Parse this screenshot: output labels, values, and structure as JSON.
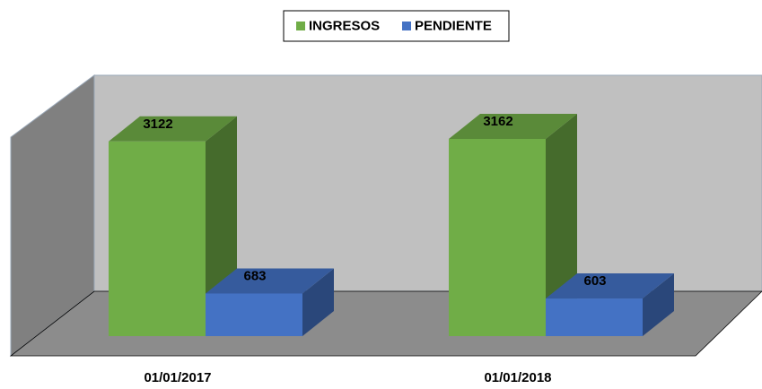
{
  "chart_data": {
    "type": "bar",
    "three_d": true,
    "categories": [
      "01/01/2017",
      "01/01/2018"
    ],
    "series": [
      {
        "name": "INGRESOS",
        "color": "#70ad47",
        "values": [
          3122,
          3162
        ]
      },
      {
        "name": "PENDIENTE",
        "color": "#4472c4",
        "values": [
          683,
          603
        ]
      }
    ],
    "legend": "top",
    "data_labels": true
  }
}
